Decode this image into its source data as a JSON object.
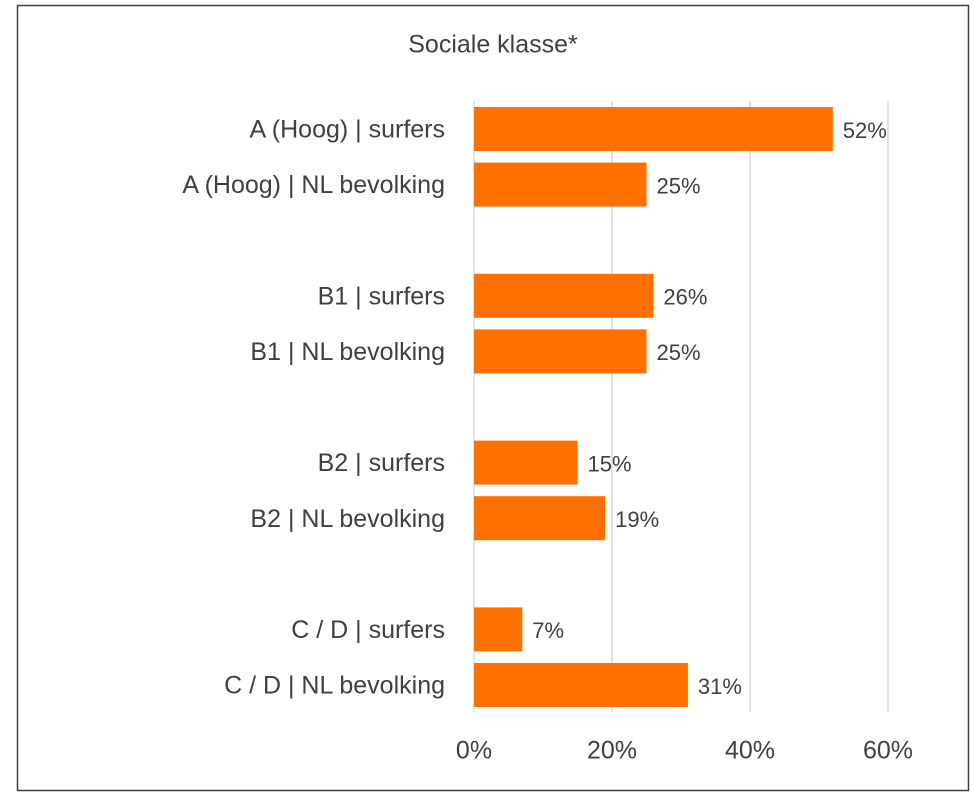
{
  "chart_data": {
    "type": "bar",
    "orientation": "horizontal",
    "title": "Sociale klasse*",
    "categories": [
      "A (Hoog) | surfers",
      "A (Hoog) | NL bevolking",
      null,
      "B1 | surfers",
      "B1 | NL bevolking",
      null,
      "B2 | surfers",
      "B2 | NL bevolking",
      null,
      "C / D | surfers",
      "C / D | NL bevolking"
    ],
    "values": [
      52,
      25,
      null,
      26,
      25,
      null,
      15,
      19,
      null,
      7,
      31
    ],
    "value_labels": [
      "52%",
      "25%",
      null,
      "26%",
      "25%",
      null,
      "15%",
      "19%",
      null,
      "7%",
      "31%"
    ],
    "color": "#ff7000",
    "xlim": [
      0,
      60
    ],
    "xticks": [
      {
        "value": 0,
        "label": "0%"
      },
      {
        "value": 20,
        "label": "20%"
      },
      {
        "value": 40,
        "label": "40%"
      },
      {
        "value": 60,
        "label": "60%"
      }
    ],
    "grid": true
  }
}
